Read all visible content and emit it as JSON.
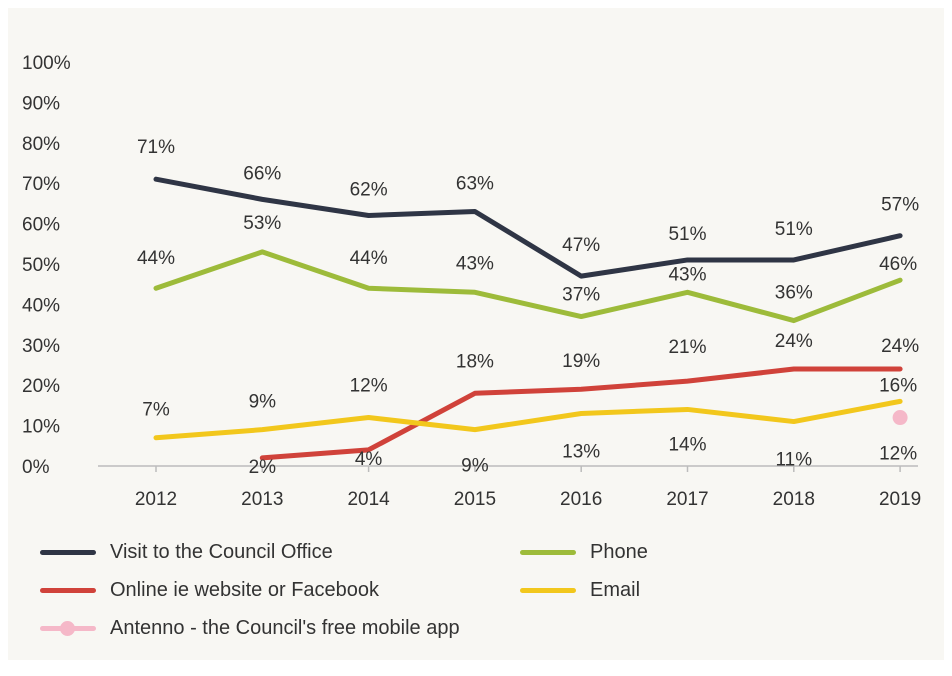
{
  "chart_data": {
    "type": "line",
    "title": "",
    "xlabel": "",
    "ylabel": "",
    "categories": [
      "2012",
      "2013",
      "2014",
      "2015",
      "2016",
      "2017",
      "2018",
      "2019"
    ],
    "y_ticks": [
      "0%",
      "10%",
      "20%",
      "30%",
      "40%",
      "50%",
      "60%",
      "70%",
      "80%",
      "90%",
      "100%"
    ],
    "ylim": [
      0,
      100
    ],
    "grid": false,
    "legend_position": "bottom",
    "series": [
      {
        "name": "Visit to the Council Office",
        "color": "#2f3545",
        "values": [
          71,
          66,
          62,
          63,
          47,
          51,
          51,
          57
        ],
        "labels": [
          "71%",
          "66%",
          "62%",
          "63%",
          "47%",
          "51%",
          "51%",
          "57%"
        ],
        "marker": false
      },
      {
        "name": "Phone",
        "color": "#9dbb3a",
        "values": [
          44,
          53,
          44,
          43,
          37,
          43,
          36,
          46
        ],
        "labels": [
          "44%",
          "53%",
          "44%",
          "43%",
          "37%",
          "43%",
          "36%",
          "46%"
        ],
        "marker": false
      },
      {
        "name": "Online ie website or Facebook",
        "color": "#d0423a",
        "values": [
          null,
          2,
          4,
          18,
          19,
          21,
          24,
          24
        ],
        "labels": [
          "",
          "2%",
          "4%",
          "18%",
          "19%",
          "21%",
          "24%",
          "24%"
        ],
        "marker": false
      },
      {
        "name": "Email",
        "color": "#f2c71c",
        "values": [
          7,
          9,
          12,
          9,
          13,
          14,
          11,
          16
        ],
        "labels": [
          "7%",
          "9%",
          "12%",
          "9%",
          "13%",
          "14%",
          "11%",
          "16%"
        ],
        "marker": false
      },
      {
        "name": "Antenno - the Council's free mobile app",
        "color": "#f5b8c8",
        "values": [
          null,
          null,
          null,
          null,
          null,
          null,
          null,
          12
        ],
        "labels": [
          "",
          "",
          "",
          "",
          "",
          "",
          "",
          "12%"
        ],
        "marker": true
      }
    ]
  }
}
